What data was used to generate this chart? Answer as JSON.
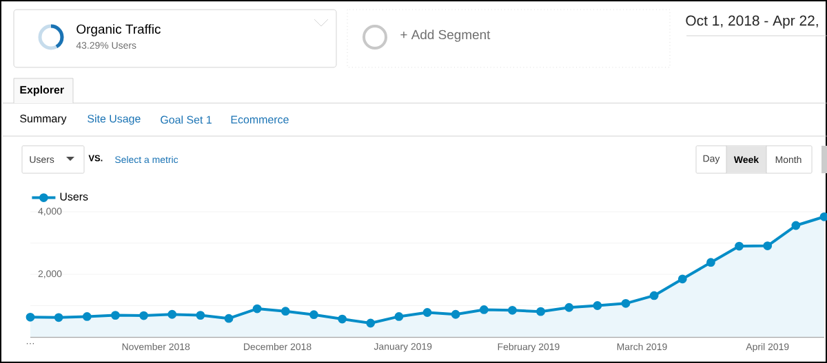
{
  "chart_data": {
    "type": "area",
    "marker": "circle",
    "grid": "y",
    "legend": "top left",
    "x": [
      "2018-10-01",
      "2018-10-08",
      "2018-10-15",
      "2018-10-22",
      "2018-10-29",
      "2018-11-05",
      "2018-11-12",
      "2018-11-19",
      "2018-11-26",
      "2018-12-03",
      "2018-12-10",
      "2018-12-17",
      "2018-12-24",
      "2018-12-31",
      "2019-01-07",
      "2019-01-14",
      "2019-01-21",
      "2019-01-28",
      "2019-02-04",
      "2019-02-11",
      "2019-02-18",
      "2019-02-25",
      "2019-03-04",
      "2019-03-11",
      "2019-03-18",
      "2019-03-25",
      "2019-04-01",
      "2019-04-08",
      "2019-04-15"
    ],
    "series": [
      {
        "name": "Users",
        "color": "#058dc7",
        "values": [
          630,
          620,
          650,
          690,
          680,
          720,
          690,
          590,
          900,
          820,
          710,
          570,
          440,
          650,
          780,
          720,
          870,
          850,
          810,
          940,
          1000,
          1070,
          1320,
          1850,
          2380,
          2900,
          2910,
          3560,
          3840
        ]
      }
    ],
    "xlim": [
      "2018-10-01",
      "2019-04-15"
    ],
    "xticks": [
      {
        "value": "2018-10-01",
        "label": "…"
      },
      {
        "value": "2018-11-01",
        "label": "November 2018"
      },
      {
        "value": "2018-12-01",
        "label": "December 2018"
      },
      {
        "value": "2019-01-01",
        "label": "January 2019"
      },
      {
        "value": "2019-02-01",
        "label": "February 2019"
      },
      {
        "value": "2019-03-01",
        "label": "March 2019"
      },
      {
        "value": "2019-04-01",
        "label": "April 2019"
      }
    ],
    "ylim": [
      0,
      4000
    ],
    "yticks": [
      {
        "value": 1000,
        "label": null
      },
      {
        "value": 2000,
        "label": "2,000"
      },
      {
        "value": 3000,
        "label": null
      },
      {
        "value": 4000,
        "label": "4,000"
      }
    ],
    "annotations": [
      "Organic Traffic",
      "43.29% Users",
      "+ Add Segment",
      "Oct 1, 2018 - Apr 22,",
      "Explorer",
      "Summary",
      "Site Usage",
      "Goal Set 1",
      "Ecommerce",
      "Users",
      "VS.",
      "Select a metric",
      "Day",
      "Week",
      "Month"
    ]
  }
}
